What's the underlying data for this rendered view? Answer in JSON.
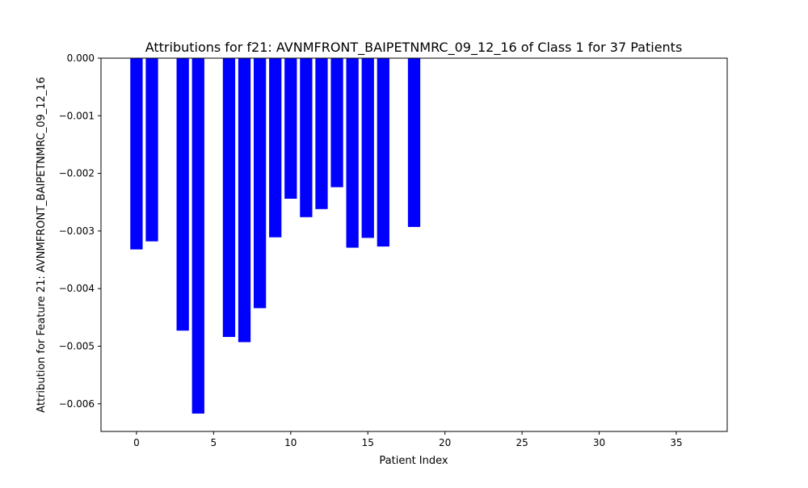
{
  "chart_data": {
    "type": "bar",
    "title": "Attributions for f21: AVNMFRONT_BAIPETNMRC_09_12_16 of Class 1 for 37 Patients",
    "xlabel": "Patient Index",
    "ylabel": "Attribution for Feature 21: AVNMFRONT_BAIPETNMRC_09_12_16",
    "x": [
      0,
      1,
      2,
      3,
      4,
      5,
      6,
      7,
      8,
      9,
      10,
      11,
      12,
      13,
      14,
      15,
      16,
      17,
      18,
      19,
      20,
      21,
      22,
      23,
      24,
      25,
      26,
      27,
      28,
      29,
      30,
      31,
      32,
      33,
      34,
      35,
      36
    ],
    "values": [
      -0.00332,
      -0.00318,
      0,
      -0.00473,
      -0.00617,
      0,
      -0.00484,
      -0.00493,
      -0.00434,
      -0.00311,
      -0.00244,
      -0.00276,
      -0.00262,
      -0.00224,
      -0.00329,
      -0.00312,
      -0.00327,
      0,
      -0.00293,
      0,
      0,
      0,
      0,
      0,
      0,
      0,
      0,
      0,
      0,
      0,
      0,
      0,
      0,
      0,
      0,
      0,
      0
    ],
    "xlim": [
      -2.3,
      38.3
    ],
    "ylim": [
      -0.00648,
      0
    ],
    "xticks": [
      0,
      5,
      10,
      15,
      20,
      25,
      30,
      35
    ],
    "xtick_labels": [
      "0",
      "5",
      "10",
      "15",
      "20",
      "25",
      "30",
      "35"
    ],
    "yticks": [
      0,
      -0.001,
      -0.002,
      -0.003,
      -0.004,
      -0.005,
      -0.006
    ],
    "ytick_labels": [
      "0.000",
      "−0.001",
      "−0.002",
      "−0.003",
      "−0.004",
      "−0.005",
      "−0.006"
    ],
    "bar_color": "#0000ff",
    "grid": false,
    "legend": "none"
  }
}
